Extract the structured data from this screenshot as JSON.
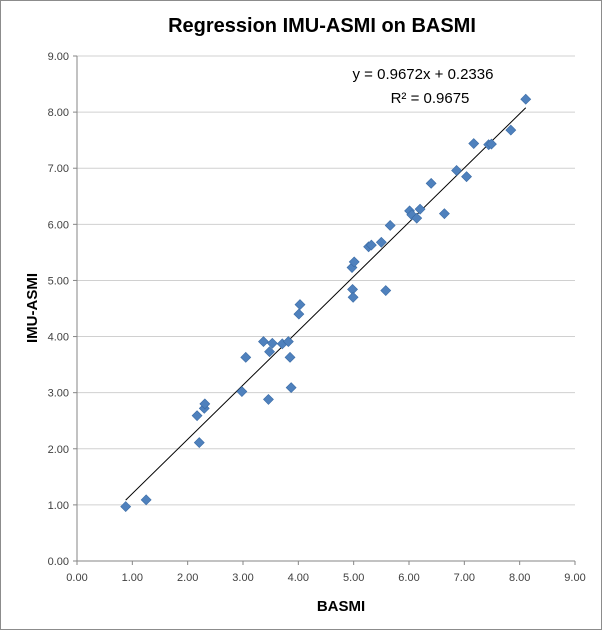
{
  "chart_data": {
    "type": "scatter",
    "title": "Regression IMU-ASMI on BASMI",
    "xlabel": "BASMI",
    "ylabel": "IMU-ASMI",
    "xlim": [
      0,
      9
    ],
    "ylim": [
      0,
      9
    ],
    "x_ticks": [
      "0.00",
      "1.00",
      "2.00",
      "3.00",
      "4.00",
      "5.00",
      "6.00",
      "7.00",
      "8.00",
      "9.00"
    ],
    "y_ticks": [
      "0.00",
      "1.00",
      "2.00",
      "3.00",
      "4.00",
      "5.00",
      "6.00",
      "7.00",
      "8.00",
      "9.00"
    ],
    "grid": "horizontal",
    "series": [
      {
        "name": "IMU-ASMI",
        "color": "#4F81BD",
        "marker": "diamond",
        "points": [
          [
            0.88,
            0.97
          ],
          [
            1.25,
            1.09
          ],
          [
            2.17,
            2.59
          ],
          [
            2.21,
            2.11
          ],
          [
            2.3,
            2.72
          ],
          [
            2.31,
            2.8
          ],
          [
            2.98,
            3.02
          ],
          [
            3.05,
            3.63
          ],
          [
            3.37,
            3.91
          ],
          [
            3.46,
            2.88
          ],
          [
            3.48,
            3.73
          ],
          [
            3.53,
            3.88
          ],
          [
            3.71,
            3.87
          ],
          [
            3.82,
            3.91
          ],
          [
            3.85,
            3.63
          ],
          [
            3.87,
            3.09
          ],
          [
            4.01,
            4.4
          ],
          [
            4.03,
            4.57
          ],
          [
            4.97,
            5.23
          ],
          [
            4.98,
            4.84
          ],
          [
            4.99,
            4.7
          ],
          [
            5.01,
            5.33
          ],
          [
            5.27,
            5.6
          ],
          [
            5.32,
            5.63
          ],
          [
            5.5,
            5.68
          ],
          [
            5.58,
            4.82
          ],
          [
            5.66,
            5.98
          ],
          [
            6.01,
            6.24
          ],
          [
            6.05,
            6.17
          ],
          [
            6.14,
            6.11
          ],
          [
            6.2,
            6.27
          ],
          [
            6.4,
            6.73
          ],
          [
            6.64,
            6.19
          ],
          [
            6.86,
            6.96
          ],
          [
            7.04,
            6.85
          ],
          [
            7.17,
            7.44
          ],
          [
            7.44,
            7.42
          ],
          [
            7.49,
            7.43
          ],
          [
            7.84,
            7.68
          ],
          [
            8.11,
            8.23
          ]
        ]
      }
    ],
    "trendline": {
      "type": "linear",
      "slope": 0.9672,
      "intercept": 0.2336,
      "x_range": [
        0.88,
        8.11
      ],
      "color": "#000000"
    },
    "annotations": {
      "equation": "y = 0.9672x + 0.2336",
      "r_squared": "R² = 0.9675"
    }
  }
}
